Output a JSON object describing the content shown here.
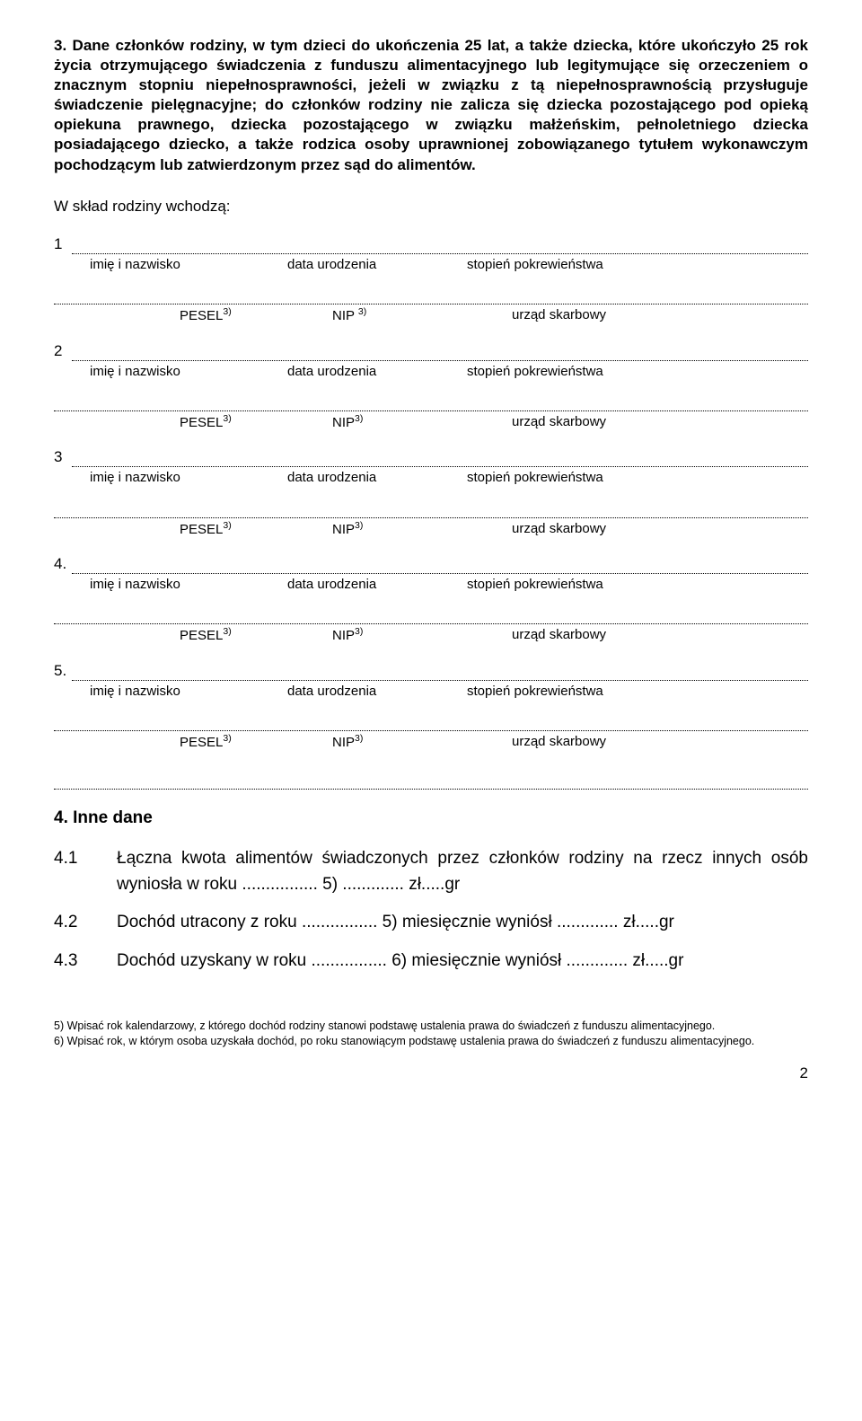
{
  "section3": {
    "title": "3. Dane członków rodziny, w tym dzieci do ukończenia 25 lat, a także dziecka, które ukończyło 25 rok życia otrzymującego świadczenia z funduszu alimentacyjnego lub legitymujące się orzeczeniem o znacznym stopniu niepełnosprawności, jeżeli w związku z tą niepełnosprawnością przysługuje świadczenie pielęgnacyjne; do członków rodziny nie zalicza się dziecka pozostającego pod opieką opiekuna prawnego, dziecka pozostającego w związku małżeńskim, pełnoletniego dziecka posiadającego dziecko, a także rodzica osoby uprawnionej zobowiązanego tytułem wykonawczym pochodzącym lub zatwierdzonym przez sąd do alimentów.",
    "subheading": "W skład rodziny wchodzą:",
    "members": [
      {
        "num": "1"
      },
      {
        "num": "2"
      },
      {
        "num": "3"
      },
      {
        "num": "4."
      },
      {
        "num": "5."
      }
    ],
    "labels": {
      "name": "imię i nazwisko",
      "dob": "data urodzenia",
      "kinship": "stopień pokrewieństwa",
      "pesel": "PESEL",
      "nip": "NIP",
      "nip_first": "NIP ",
      "tax": "urząd skarbowy",
      "sup3": "3)"
    }
  },
  "section4": {
    "title": "4. Inne dane",
    "items": [
      {
        "num": "4.1",
        "text": "Łączna kwota alimentów świadczonych przez członków rodziny na rzecz innych osób wyniosła w roku ................ 5) ............. zł.....gr"
      },
      {
        "num": "4.2",
        "text": "Dochód utracony z roku ................ 5) miesięcznie wyniósł ............. zł.....gr"
      },
      {
        "num": "4.3",
        "text": "Dochód uzyskany w roku ................ 6) miesięcznie wyniósł ............. zł.....gr"
      }
    ]
  },
  "footnotes": {
    "f5": "5) Wpisać rok kalendarzowy, z którego dochód rodziny stanowi podstawę ustalenia prawa do świadczeń z funduszu alimentacyjnego.",
    "f6": "6) Wpisać rok, w którym osoba uzyskała dochód, po roku stanowiącym podstawę ustalenia prawa do świadczeń z funduszu alimentacyjnego."
  },
  "pageNumber": "2"
}
